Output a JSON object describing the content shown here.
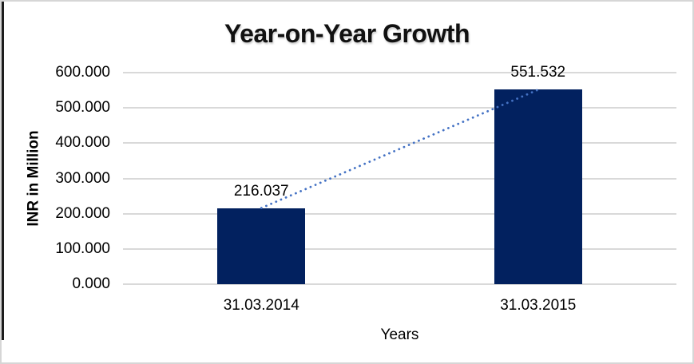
{
  "window": {
    "border_color": "#d6d6d6",
    "left_edge_color": "#1c1c1c",
    "background_color": "#ffffff"
  },
  "chart_data": {
    "type": "bar",
    "title": "Year-on-Year Growth",
    "xlabel": "Years",
    "ylabel": "INR in Million",
    "categories": [
      "31.03.2014",
      "31.03.2015"
    ],
    "values": [
      216.037,
      551.532
    ],
    "data_labels": [
      "216.037",
      "551.532"
    ],
    "ylim": [
      0,
      600
    ],
    "ytick_labels": [
      "0.000",
      "100.000",
      "200.000",
      "300.000",
      "400.000",
      "500.000",
      "600.000"
    ],
    "grid": true,
    "legend": "none",
    "bar_color": "#02215f",
    "gridline_color": "#d9d9d9",
    "text_color": "#000000",
    "trendline": {
      "type": "linear",
      "style": "dotted",
      "color": "#4472c4"
    }
  }
}
